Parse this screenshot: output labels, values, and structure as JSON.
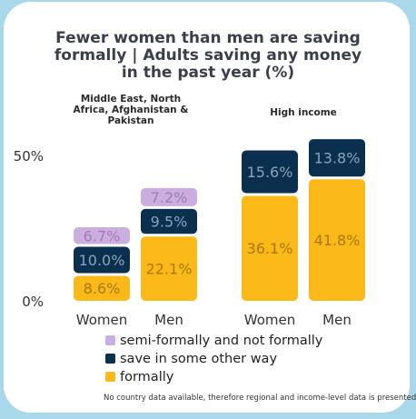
{
  "chart_data": {
    "type": "bar",
    "stacked": true,
    "title_lines": [
      "Fewer women than men are saving",
      "formally | Adults saving any money",
      "in the past year (%)"
    ],
    "groups": [
      {
        "label_lines": [
          "Middle East, North",
          "Africa, Afghanistan &",
          "Pakistan"
        ],
        "categories": [
          "Women",
          "Men"
        ],
        "series_values": {
          "formally": [
            8.6,
            22.1
          ],
          "other": [
            10.0,
            9.5
          ],
          "semi": [
            6.7,
            7.2
          ]
        },
        "value_labels": {
          "formally": [
            "8.6%",
            "22.1%"
          ],
          "other": [
            "10.0%",
            "9.5%"
          ],
          "semi": [
            "6.7%",
            "7.2%"
          ]
        }
      },
      {
        "label_lines": [
          "High income"
        ],
        "categories": [
          "Women",
          "Men"
        ],
        "series_values": {
          "formally": [
            36.1,
            41.8
          ],
          "other": [
            15.6,
            13.8
          ]
        },
        "value_labels": {
          "formally": [
            "36.1%",
            "41.8%"
          ],
          "other": [
            "15.6%",
            "13.8%"
          ]
        }
      }
    ],
    "series": [
      {
        "key": "semi",
        "name": "semi-formally and not formally",
        "color": "#cbaee0"
      },
      {
        "key": "other",
        "name": "save in some other way",
        "color": "#0b2f4f"
      },
      {
        "key": "formally",
        "name": "formally",
        "color": "#fbb819"
      }
    ],
    "yticks": [
      "0%",
      "50%"
    ],
    "ytick_values": [
      0,
      50
    ],
    "legend_position": "bottom-left",
    "grid": false,
    "note": "No country data available, therefore regional and income-level data is presented"
  }
}
